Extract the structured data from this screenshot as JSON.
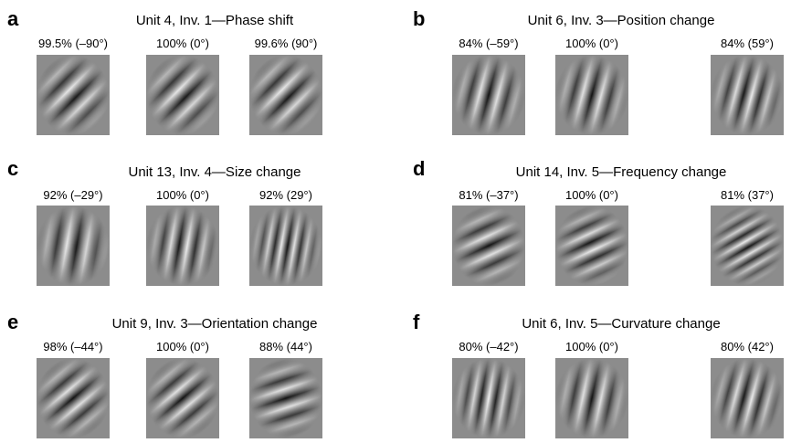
{
  "panels": [
    {
      "letter": "a",
      "title": "Unit 4, Inv. 1—Phase shift",
      "captions": [
        "99.5% (–90°)",
        "100% (0°)",
        "99.6% (90°)"
      ]
    },
    {
      "letter": "b",
      "title": "Unit 6, Inv. 3—Position change",
      "captions": [
        "84% (–59°)",
        "100% (0°)",
        "84% (59°)"
      ]
    },
    {
      "letter": "c",
      "title": "Unit 13, Inv. 4—Size change",
      "captions": [
        "92% (–29°)",
        "100% (0°)",
        "92% (29°)"
      ]
    },
    {
      "letter": "d",
      "title": "Unit 14, Inv. 5—Frequency change",
      "captions": [
        "81% (–37°)",
        "100% (0°)",
        "81% (37°)"
      ]
    },
    {
      "letter": "e",
      "title": "Unit 9, Inv. 3—Orientation change",
      "captions": [
        "98% (–44°)",
        "100% (0°)",
        "88% (44°)"
      ]
    },
    {
      "letter": "f",
      "title": "Unit 6, Inv. 5—Curvature change",
      "captions": [
        "80% (–42°)",
        "100% (0°)",
        "80% (42°)"
      ]
    }
  ]
}
